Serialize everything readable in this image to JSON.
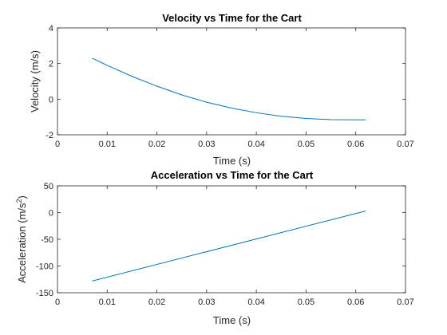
{
  "chart_data": [
    {
      "type": "line",
      "title": "Velocity vs Time for the Cart",
      "xlabel": "Time (s)",
      "ylabel": "Velocity (m/s)",
      "xlim": [
        0,
        0.07
      ],
      "ylim": [
        -2,
        4
      ],
      "xticks": [
        "0",
        "0.01",
        "0.02",
        "0.03",
        "0.04",
        "0.05",
        "0.06",
        "0.07"
      ],
      "yticks": [
        "-2",
        "0",
        "2",
        "4"
      ],
      "line_color": "#0072bd",
      "grid": false,
      "series": [
        {
          "x": [
            0.007,
            0.01,
            0.015,
            0.02,
            0.025,
            0.03,
            0.035,
            0.04,
            0.045,
            0.05,
            0.055,
            0.06,
            0.062
          ],
          "y": [
            2.3,
            1.9,
            1.28,
            0.73,
            0.24,
            -0.17,
            -0.5,
            -0.76,
            -0.96,
            -1.08,
            -1.15,
            -1.16,
            -1.16
          ]
        }
      ]
    },
    {
      "type": "line",
      "title": "Acceleration vs Time for the Cart",
      "xlabel": "Time (s)",
      "ylabel": "Acceleration (m/s",
      "ylabel_sup": "2",
      "ylabel_close": ")",
      "xlim": [
        0,
        0.07
      ],
      "ylim": [
        -150,
        50
      ],
      "xticks": [
        "0",
        "0.01",
        "0.02",
        "0.03",
        "0.04",
        "0.05",
        "0.06",
        "0.07"
      ],
      "yticks": [
        "-150",
        "-100",
        "-50",
        "0",
        "50"
      ],
      "line_color": "#0072bd",
      "grid": false,
      "series": [
        {
          "x": [
            0.007,
            0.062
          ],
          "y": [
            -128,
            3
          ]
        }
      ]
    }
  ]
}
